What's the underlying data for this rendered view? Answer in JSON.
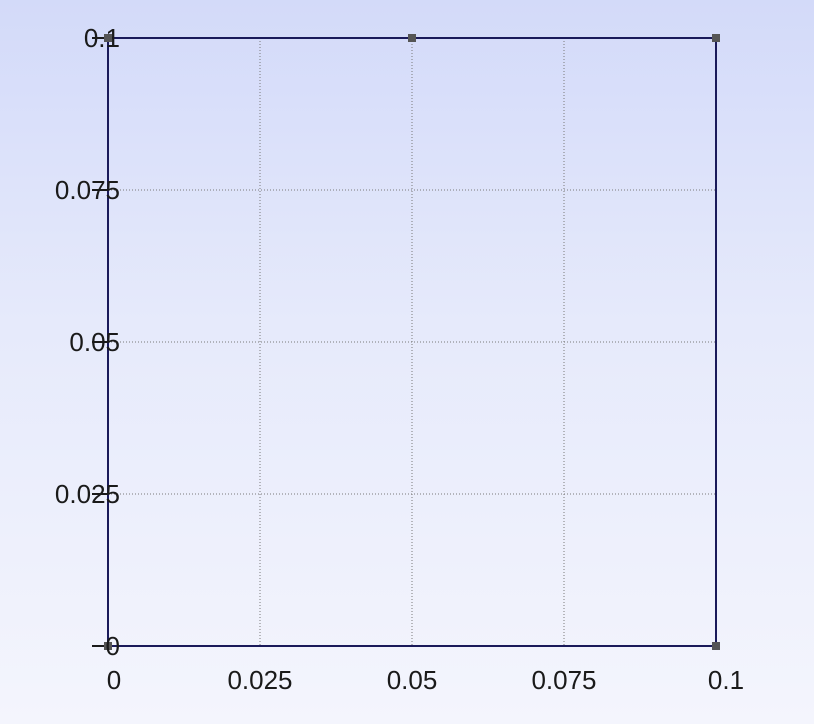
{
  "chart_data": {
    "type": "line",
    "title": "",
    "xlabel": "",
    "ylabel": "",
    "xlim": [
      0,
      0.1
    ],
    "ylim": [
      0,
      0.1
    ],
    "x_ticks": [
      0,
      0.025,
      0.05,
      0.075,
      0.1
    ],
    "x_tick_labels": [
      "0",
      "0.025",
      "0.05",
      "0.075",
      "0.1"
    ],
    "y_ticks": [
      0,
      0.025,
      0.05,
      0.075,
      0.1
    ],
    "y_tick_labels": [
      "0",
      "0.025",
      "0.05",
      "0.075",
      "0.1"
    ],
    "grid": true,
    "series": [
      {
        "closed": true,
        "color": "#1a1a5a",
        "x": [
          0,
          0.1,
          0.1,
          0.05,
          0
        ],
        "y": [
          0,
          0,
          0.1,
          0.1,
          0.1
        ]
      }
    ],
    "nodes": [
      {
        "x": 0,
        "y": 0
      },
      {
        "x": 0.1,
        "y": 0
      },
      {
        "x": 0,
        "y": 0.1
      },
      {
        "x": 0.05,
        "y": 0.1
      },
      {
        "x": 0.1,
        "y": 0.1
      }
    ]
  }
}
